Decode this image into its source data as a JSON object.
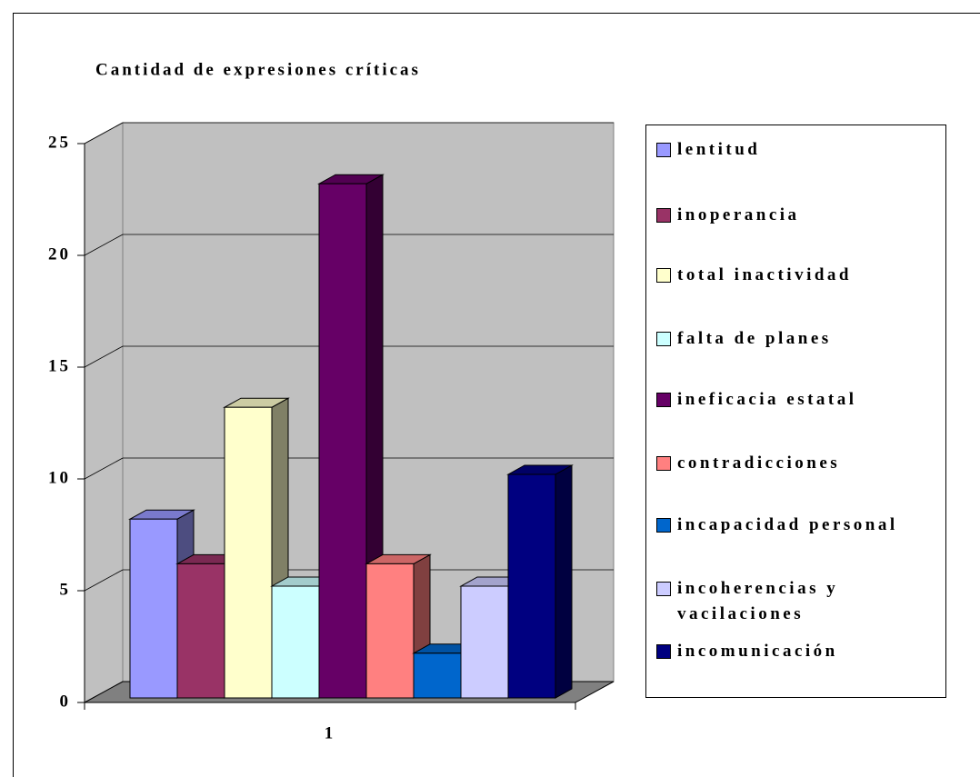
{
  "chart_data": {
    "type": "bar3d",
    "title": "Cantidad de expresiones críticas",
    "categories": [
      "1"
    ],
    "series": [
      {
        "name": "lentitud",
        "color": "#9999ff",
        "values": [
          8
        ]
      },
      {
        "name": "inoperancia",
        "color": "#993366",
        "values": [
          6
        ]
      },
      {
        "name": "total inactividad",
        "color": "#ffffcc",
        "values": [
          13
        ]
      },
      {
        "name": "falta de planes",
        "color": "#ccffff",
        "values": [
          5
        ]
      },
      {
        "name": "ineficacia estatal",
        "color": "#660066",
        "values": [
          23
        ]
      },
      {
        "name": "contradicciones",
        "color": "#ff8080",
        "values": [
          6
        ]
      },
      {
        "name": "incapacidad personal",
        "color": "#0066cc",
        "values": [
          2
        ]
      },
      {
        "name": "incoherencias y vacilaciones",
        "color": "#ccccff",
        "values": [
          5
        ]
      },
      {
        "name": "incomunicación",
        "color": "#000080",
        "values": [
          10
        ]
      }
    ],
    "ylim": [
      0,
      25
    ],
    "yticks": [
      0,
      5,
      10,
      15,
      20,
      25
    ],
    "grid": true,
    "legend": "right"
  }
}
